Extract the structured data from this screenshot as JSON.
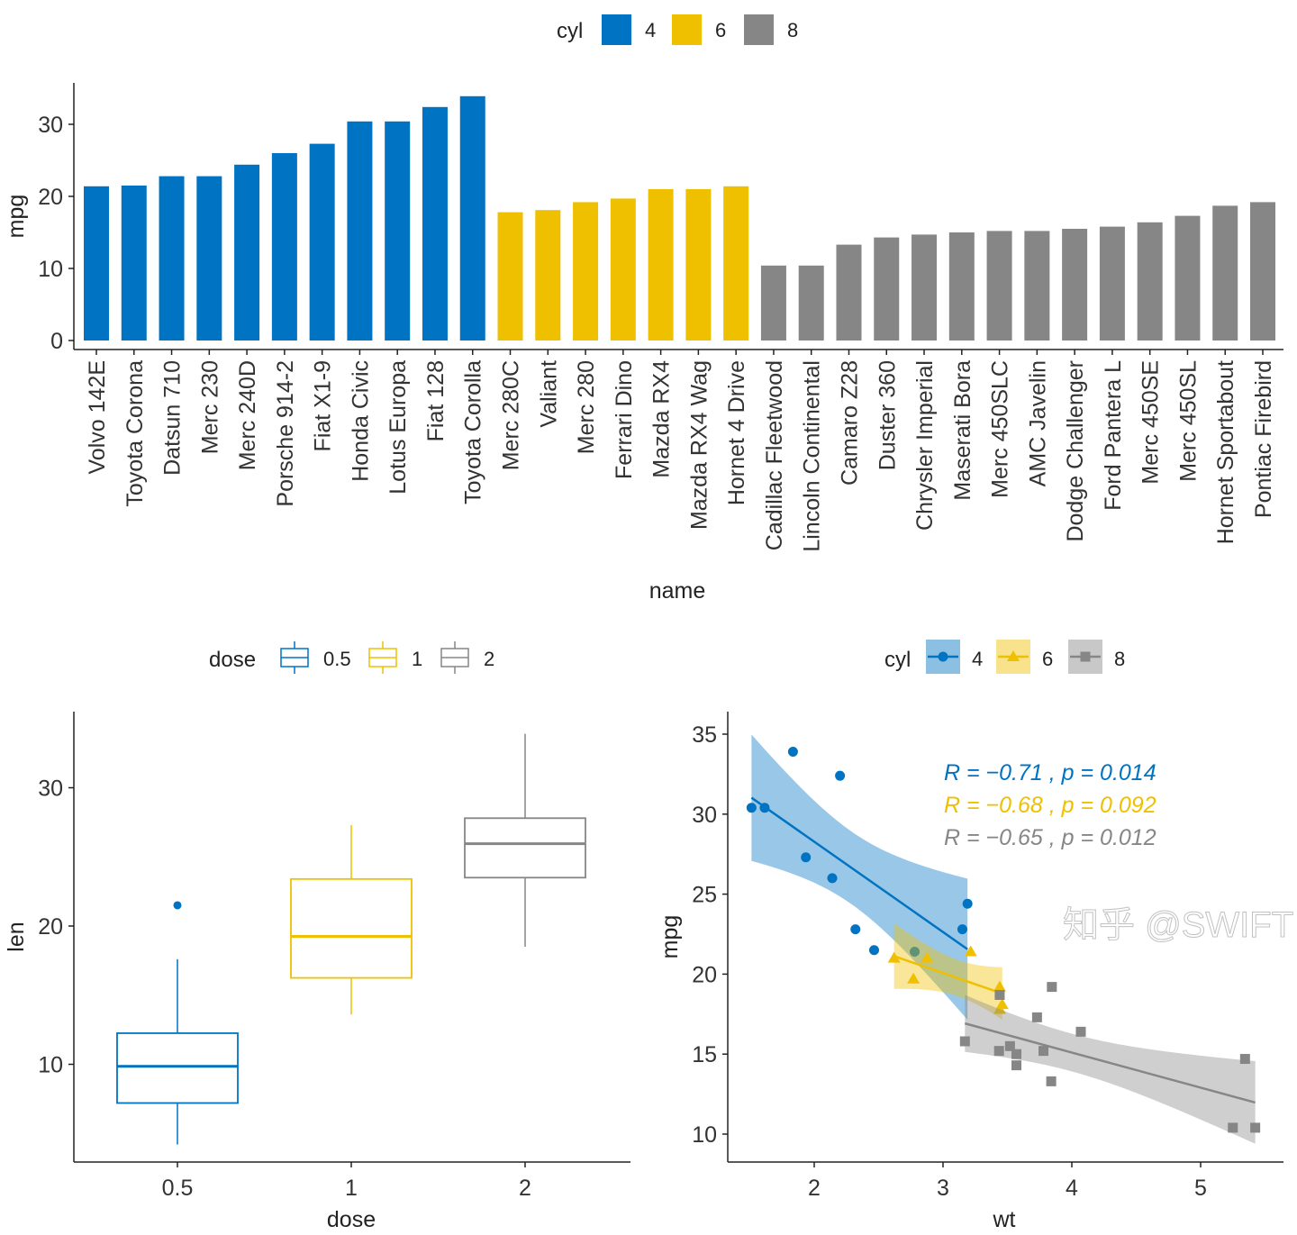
{
  "watermark": "知乎 @SWIFT",
  "chart_data": [
    {
      "type": "bar",
      "xlabel": "name",
      "ylabel": "mpg",
      "ylim": [
        0,
        36
      ],
      "yticks": [
        "0",
        "10",
        "20",
        "30"
      ],
      "grid": false,
      "legend": {
        "title": "cyl",
        "position": "top",
        "entries": [
          "4",
          "6",
          "8"
        ]
      },
      "colors": {
        "4": "#0073C2",
        "6": "#EFC000",
        "8": "#868686"
      },
      "categories": [
        "Volvo 142E",
        "Toyota Corona",
        "Datsun 710",
        "Merc 230",
        "Merc 240D",
        "Porsche 914-2",
        "Fiat X1-9",
        "Honda Civic",
        "Lotus Europa",
        "Fiat 128",
        "Toyota Corolla",
        "Merc 280C",
        "Valiant",
        "Merc 280",
        "Ferrari Dino",
        "Mazda RX4",
        "Mazda RX4 Wag",
        "Hornet 4 Drive",
        "Cadillac Fleetwood",
        "Lincoln Continental",
        "Camaro Z28",
        "Duster 360",
        "Chrysler Imperial",
        "Maserati Bora",
        "Merc 450SLC",
        "AMC Javelin",
        "Dodge Challenger",
        "Ford Pantera L",
        "Merc 450SE",
        "Merc 450SL",
        "Hornet Sportabout",
        "Pontiac Firebird"
      ],
      "groups": [
        "4",
        "4",
        "4",
        "4",
        "4",
        "4",
        "4",
        "4",
        "4",
        "4",
        "4",
        "6",
        "6",
        "6",
        "6",
        "6",
        "6",
        "6",
        "8",
        "8",
        "8",
        "8",
        "8",
        "8",
        "8",
        "8",
        "8",
        "8",
        "8",
        "8",
        "8",
        "8"
      ],
      "values": [
        21.4,
        21.5,
        22.8,
        22.8,
        24.4,
        26.0,
        27.3,
        30.4,
        30.4,
        32.4,
        33.9,
        17.8,
        18.1,
        19.2,
        19.7,
        21.0,
        21.0,
        21.4,
        10.4,
        10.4,
        13.3,
        14.3,
        14.7,
        15.0,
        15.2,
        15.2,
        15.5,
        15.8,
        16.4,
        17.3,
        18.7,
        19.2
      ]
    },
    {
      "type": "box",
      "xlabel": "dose",
      "ylabel": "len",
      "ylim": [
        2.9,
        35.5
      ],
      "yticks": [
        "10",
        "20",
        "30"
      ],
      "categories": [
        "0.5",
        "1",
        "2"
      ],
      "legend": {
        "title": "dose",
        "position": "top",
        "entries": [
          "0.5",
          "1",
          "2"
        ]
      },
      "colors": {
        "0.5": "#0073C2",
        "1": "#EFC000",
        "2": "#868686"
      },
      "boxes": [
        {
          "min": 4.2,
          "q1": 7.2,
          "median": 9.85,
          "q3": 12.25,
          "max": 17.6,
          "outliers": [
            21.5
          ]
        },
        {
          "min": 13.6,
          "q1": 16.25,
          "median": 19.25,
          "q3": 23.4,
          "max": 27.3,
          "outliers": []
        },
        {
          "min": 18.5,
          "q1": 23.5,
          "median": 25.95,
          "q3": 27.8,
          "max": 33.9,
          "outliers": []
        }
      ]
    },
    {
      "type": "scatter",
      "xlabel": "wt",
      "ylabel": "mpg",
      "xlim": [
        1.33,
        5.64
      ],
      "ylim": [
        8.25,
        36.4
      ],
      "xticks": [
        "2",
        "3",
        "4",
        "5"
      ],
      "yticks": [
        "10",
        "15",
        "20",
        "25",
        "30",
        "35"
      ],
      "legend": {
        "title": "cyl",
        "position": "top",
        "entries": [
          "4",
          "6",
          "8"
        ]
      },
      "series": [
        {
          "name": "4",
          "color": "#0073C2",
          "shape": "circle",
          "points": [
            [
              2.32,
              22.8
            ],
            [
              3.19,
              24.4
            ],
            [
              3.15,
              22.8
            ],
            [
              2.2,
              32.4
            ],
            [
              1.615,
              30.4
            ],
            [
              1.835,
              33.9
            ],
            [
              2.465,
              21.5
            ],
            [
              1.935,
              27.3
            ],
            [
              2.14,
              26.0
            ],
            [
              1.513,
              30.4
            ],
            [
              2.78,
              21.4
            ]
          ]
        },
        {
          "name": "6",
          "color": "#EFC000",
          "shape": "triangle",
          "points": [
            [
              2.62,
              21.0
            ],
            [
              2.875,
              21.0
            ],
            [
              3.215,
              21.4
            ],
            [
              3.46,
              18.1
            ],
            [
              3.44,
              19.2
            ],
            [
              3.44,
              17.8
            ],
            [
              2.77,
              19.7
            ]
          ]
        },
        {
          "name": "8",
          "color": "#868686",
          "shape": "square",
          "points": [
            [
              3.44,
              18.7
            ],
            [
              3.57,
              14.3
            ],
            [
              4.07,
              16.4
            ],
            [
              3.73,
              17.3
            ],
            [
              3.78,
              15.2
            ],
            [
              5.25,
              10.4
            ],
            [
              5.424,
              10.4
            ],
            [
              5.345,
              14.7
            ],
            [
              3.52,
              15.5
            ],
            [
              3.435,
              15.2
            ],
            [
              3.84,
              13.3
            ],
            [
              3.845,
              19.2
            ],
            [
              3.17,
              15.8
            ],
            [
              3.57,
              15.0
            ]
          ]
        }
      ],
      "annotations": [
        "R = −0.71 , p = 0.014",
        "R = −0.68 , p = 0.092",
        "R = −0.65 , p = 0.012"
      ]
    }
  ]
}
